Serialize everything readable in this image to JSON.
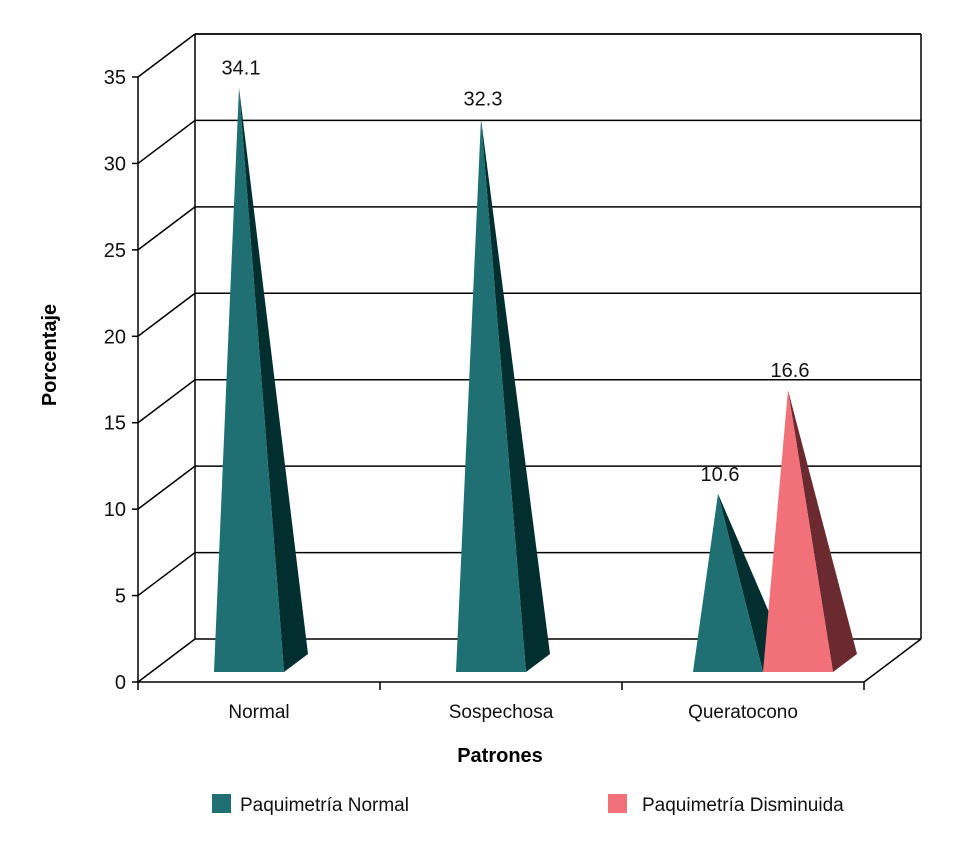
{
  "chart_data": {
    "type": "bar",
    "style": "3d-pyramid",
    "categories": [
      "Normal",
      "Sospechosa",
      "Queratocono"
    ],
    "series": [
      {
        "name": "Paquimetría Normal",
        "values": [
          34.1,
          32.3,
          10.6
        ],
        "color": "#1e7073",
        "shade": "#012e2f"
      },
      {
        "name": "Paquimetría Disminuida",
        "values": [
          null,
          null,
          16.6
        ],
        "color": "#f27078",
        "shade": "#6a2a30"
      }
    ],
    "data_labels": [
      "34.1",
      "32.3",
      "10.6",
      "16.6"
    ],
    "xlabel": "Patrones",
    "ylabel": "Porcentaje",
    "ylim": [
      0,
      35
    ],
    "yticks": [
      0,
      5,
      10,
      15,
      20,
      25,
      30,
      35
    ],
    "grid": true,
    "legend_position": "bottom"
  }
}
